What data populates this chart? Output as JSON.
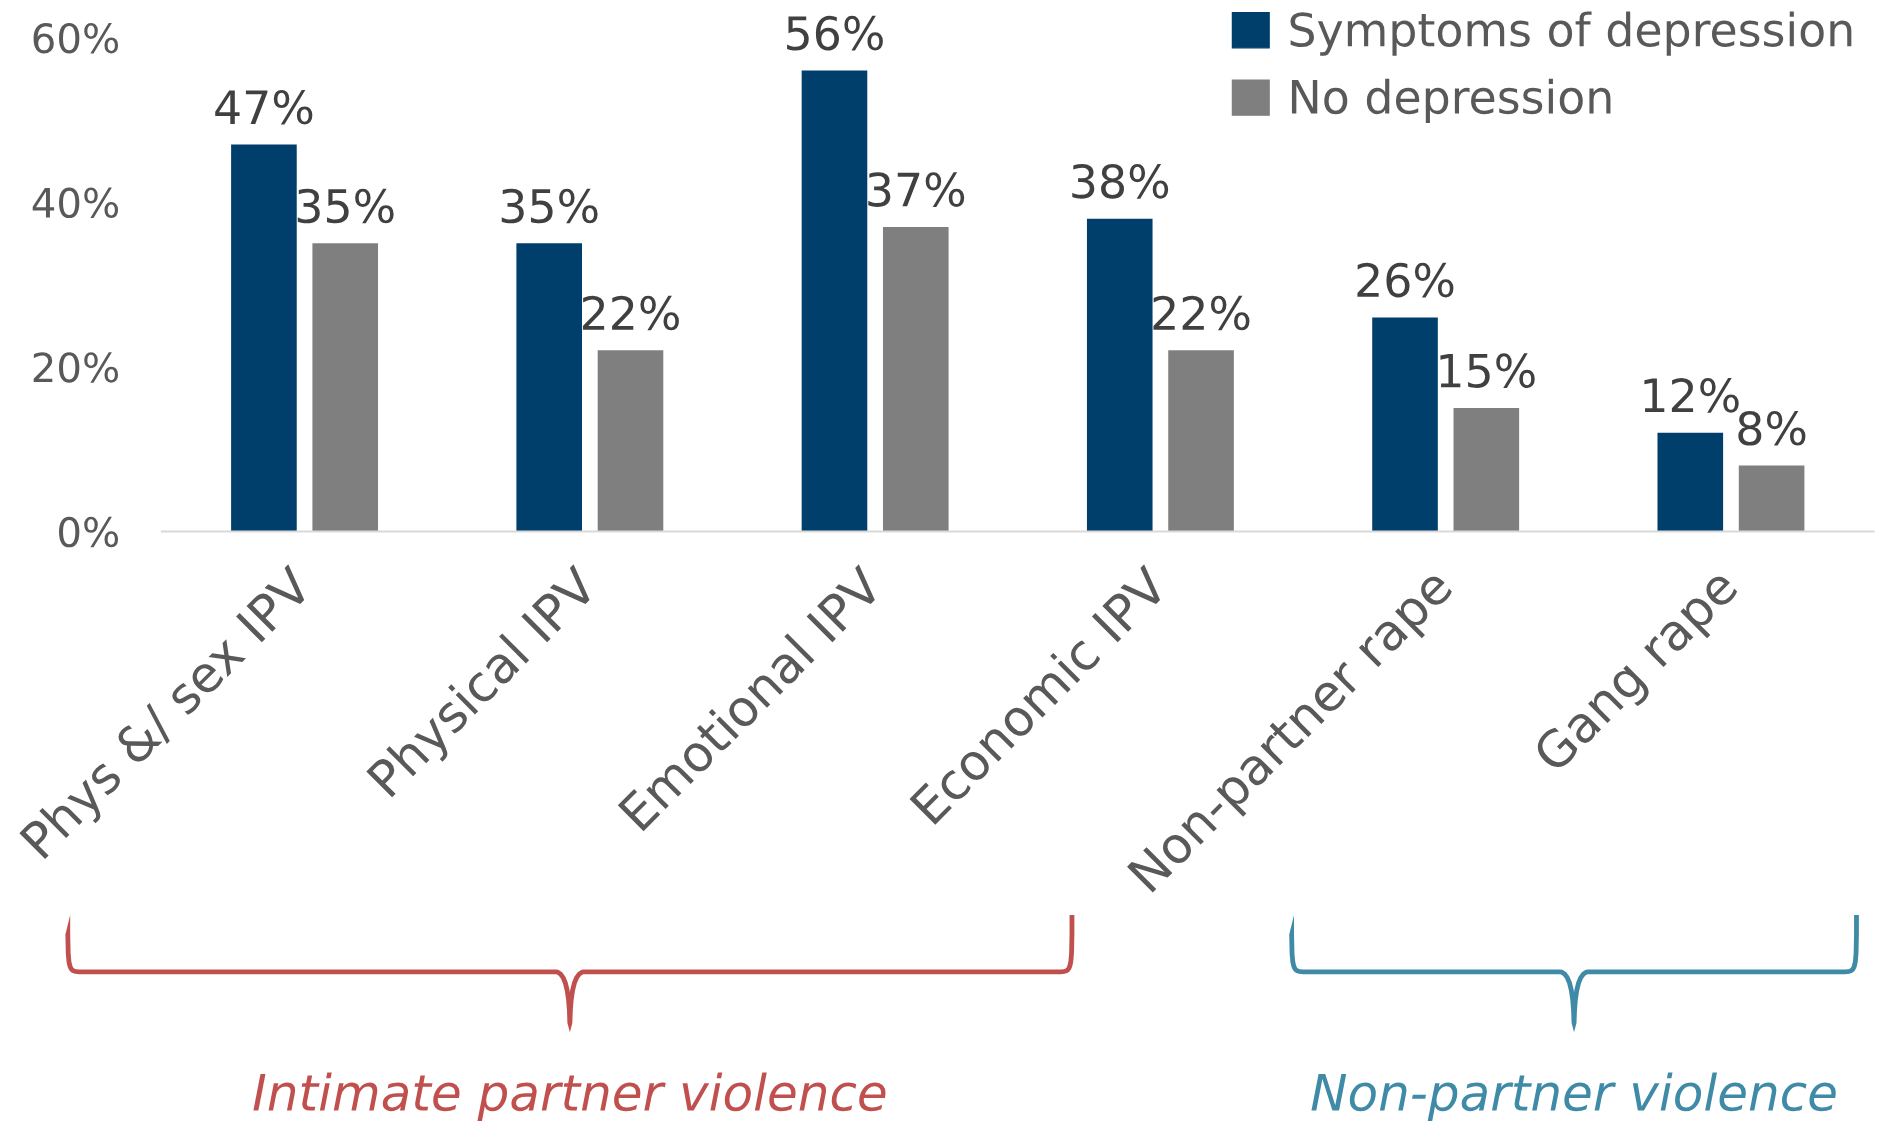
{
  "chart_data": {
    "type": "bar",
    "categories": [
      "Phys &/ sex IPV",
      "Physical IPV",
      "Emotional IPV",
      "Economic IPV",
      "Non-partner rape",
      "Gang rape"
    ],
    "series": [
      {
        "name": "Symptoms of depression",
        "color": "#003f6b",
        "values": [
          47,
          35,
          56,
          38,
          26,
          12
        ],
        "value_labels": [
          "47%",
          "35%",
          "56%",
          "38%",
          "26%",
          "12%"
        ]
      },
      {
        "name": "No depression",
        "color": "#7f7f7f",
        "values": [
          35,
          22,
          37,
          22,
          15,
          8
        ],
        "value_labels": [
          "35%",
          "22%",
          "37%",
          "22%",
          "15%",
          "8%"
        ]
      }
    ],
    "ylim": [
      0,
      60
    ],
    "yticks": [
      {
        "value": 0,
        "label": "0%"
      },
      {
        "value": 20,
        "label": "20%"
      },
      {
        "value": 40,
        "label": "40%"
      },
      {
        "value": 60,
        "label": "60%"
      }
    ],
    "grid": false,
    "legend": "top right",
    "data_labels": true,
    "annotations": [
      "Intimate partner violence",
      "Non-partner violence"
    ]
  }
}
